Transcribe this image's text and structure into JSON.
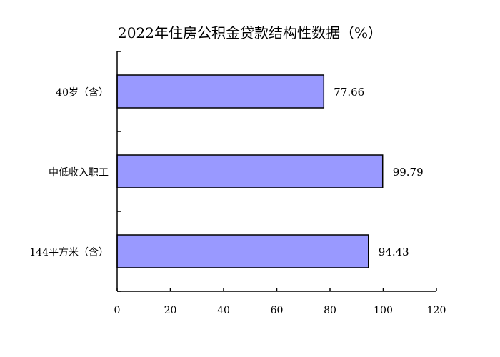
{
  "chart_data": {
    "type": "bar",
    "orientation": "horizontal",
    "title": "2022年住房公积金贷款结构性数据（%）",
    "categories": [
      "40岁（含）",
      "中低收入职工",
      "144平方米（含）"
    ],
    "values": [
      77.66,
      99.79,
      94.43
    ],
    "data_labels": [
      "77.66",
      "99.79",
      "94.43"
    ],
    "xlim": [
      0,
      120
    ],
    "xticks": [
      "0",
      "20",
      "40",
      "60",
      "80",
      "100",
      "120"
    ],
    "xlabel": "",
    "ylabel": "",
    "grid": false,
    "legend": "none",
    "bar_color": "#9999FF",
    "bar_edge_color": "#000000"
  }
}
